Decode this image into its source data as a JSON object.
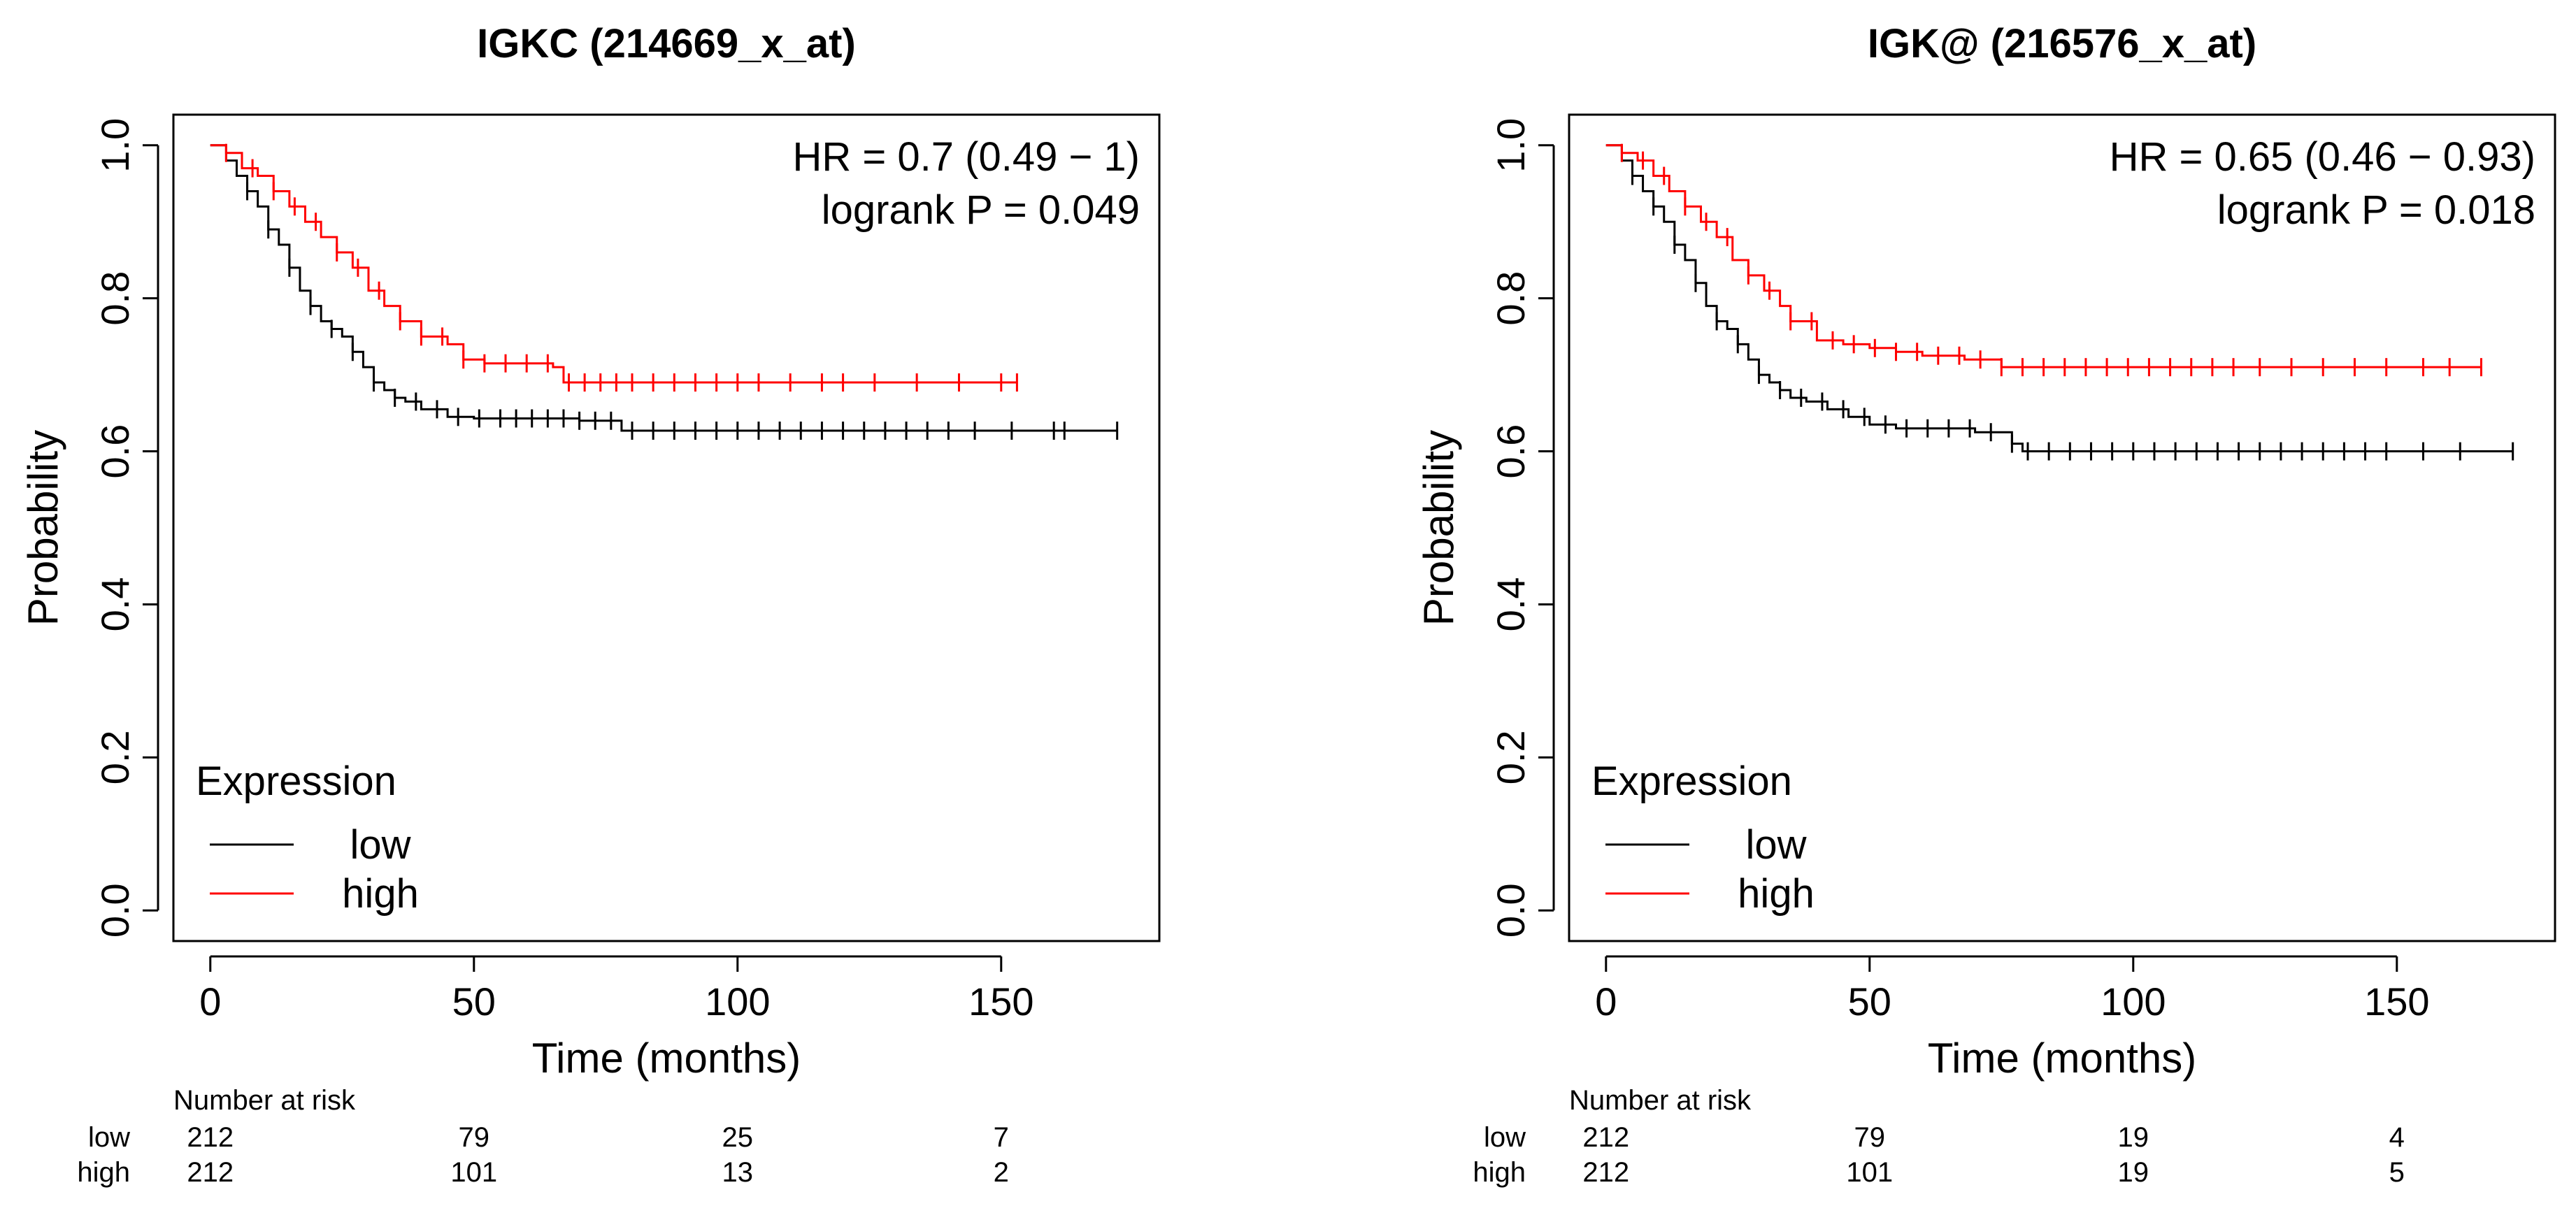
{
  "colors": {
    "low": "#000000",
    "high": "#ff0000",
    "frame": "#000000"
  },
  "chart_data": [
    {
      "type": "line",
      "title": "IGKC (214669_x_at)",
      "xlabel": "Time (months)",
      "ylabel": "Probability",
      "xlim": [
        -7,
        180
      ],
      "ylim": [
        -0.04,
        1.04
      ],
      "xticks": [
        0,
        50,
        100,
        150
      ],
      "xtick_labels": [
        "0",
        "50",
        "100",
        "150"
      ],
      "yticks": [
        0.0,
        0.2,
        0.4,
        0.6,
        0.8,
        1.0
      ],
      "ytick_labels": [
        "0.0",
        "0.2",
        "0.4",
        "0.6",
        "0.8",
        "1.0"
      ],
      "annotations": [
        "HR = 0.7 (0.49 − 1)",
        "logrank P = 0.049"
      ],
      "legend": {
        "title": "Expression",
        "entries": [
          "low",
          "high"
        ],
        "position": "bottom-left"
      },
      "series": [
        {
          "name": "low",
          "x": [
            0,
            3,
            5,
            7,
            9,
            11,
            13,
            15,
            17,
            19,
            21,
            23,
            25,
            27,
            29,
            31,
            33,
            35,
            37,
            40,
            45,
            50,
            60,
            70,
            78,
            90,
            110,
            130,
            150,
            172
          ],
          "y": [
            1.0,
            0.98,
            0.96,
            0.94,
            0.92,
            0.89,
            0.87,
            0.84,
            0.81,
            0.79,
            0.77,
            0.76,
            0.75,
            0.73,
            0.71,
            0.69,
            0.68,
            0.67,
            0.665,
            0.655,
            0.645,
            0.643,
            0.643,
            0.64,
            0.627,
            0.627,
            0.627,
            0.627,
            0.627,
            0.627
          ],
          "censor_x": [
            7,
            11,
            15,
            19,
            23,
            27,
            31,
            35,
            39,
            43,
            47,
            51,
            55,
            58,
            61,
            64,
            67,
            70,
            73,
            76,
            80,
            84,
            88,
            92,
            96,
            100,
            104,
            108,
            112,
            116,
            120,
            124,
            128,
            132,
            136,
            140,
            145,
            152,
            160,
            162,
            172
          ]
        },
        {
          "name": "high",
          "x": [
            0,
            3,
            6,
            9,
            12,
            15,
            18,
            21,
            24,
            27,
            30,
            33,
            36,
            40,
            45,
            48,
            52,
            58,
            65,
            67,
            75,
            100,
            130,
            153
          ],
          "y": [
            1.0,
            0.99,
            0.97,
            0.96,
            0.94,
            0.92,
            0.9,
            0.88,
            0.86,
            0.84,
            0.81,
            0.79,
            0.77,
            0.75,
            0.74,
            0.72,
            0.715,
            0.715,
            0.71,
            0.69,
            0.69,
            0.69,
            0.69,
            0.69
          ],
          "censor_x": [
            3,
            8,
            12,
            16,
            20,
            24,
            28,
            32,
            36,
            40,
            44,
            48,
            52,
            56,
            60,
            64,
            68,
            71,
            74,
            77,
            80,
            84,
            88,
            92,
            96,
            100,
            104,
            110,
            116,
            120,
            126,
            134,
            142,
            150,
            153
          ]
        }
      ],
      "risk_table": {
        "header": "Number at risk",
        "rows": [
          {
            "label": "low",
            "values": [
              "212",
              "79",
              "25",
              "7"
            ]
          },
          {
            "label": "high",
            "values": [
              "212",
              "101",
              "13",
              "2"
            ]
          }
        ]
      }
    },
    {
      "type": "line",
      "title": "IGK@ (216576_x_at)",
      "xlabel": "Time (months)",
      "ylabel": "Probability",
      "xlim": [
        -7,
        180
      ],
      "ylim": [
        -0.04,
        1.04
      ],
      "xticks": [
        0,
        50,
        100,
        150
      ],
      "xtick_labels": [
        "0",
        "50",
        "100",
        "150"
      ],
      "yticks": [
        0.0,
        0.2,
        0.4,
        0.6,
        0.8,
        1.0
      ],
      "ytick_labels": [
        "0.0",
        "0.2",
        "0.4",
        "0.6",
        "0.8",
        "1.0"
      ],
      "annotations": [
        "HR = 0.65 (0.46 − 0.93)",
        "logrank P = 0.018"
      ],
      "legend": {
        "title": "Expression",
        "entries": [
          "low",
          "high"
        ],
        "position": "bottom-left"
      },
      "series": [
        {
          "name": "low",
          "x": [
            0,
            3,
            5,
            7,
            9,
            11,
            13,
            15,
            17,
            19,
            21,
            23,
            25,
            27,
            29,
            31,
            33,
            35,
            38,
            42,
            46,
            50,
            55,
            60,
            70,
            77,
            79,
            100,
            130,
            172
          ],
          "y": [
            1.0,
            0.98,
            0.96,
            0.94,
            0.92,
            0.9,
            0.87,
            0.85,
            0.82,
            0.79,
            0.77,
            0.76,
            0.74,
            0.72,
            0.7,
            0.69,
            0.68,
            0.67,
            0.665,
            0.655,
            0.645,
            0.635,
            0.63,
            0.63,
            0.625,
            0.61,
            0.6,
            0.6,
            0.6,
            0.6
          ],
          "censor_x": [
            5,
            9,
            13,
            17,
            21,
            25,
            29,
            33,
            37,
            41,
            45,
            49,
            53,
            57,
            61,
            65,
            69,
            73,
            77,
            80,
            84,
            88,
            92,
            96,
            100,
            104,
            108,
            112,
            116,
            120,
            124,
            128,
            132,
            136,
            140,
            144,
            148,
            155,
            162,
            172
          ]
        },
        {
          "name": "high",
          "x": [
            0,
            3,
            6,
            9,
            12,
            15,
            18,
            21,
            24,
            27,
            30,
            33,
            35,
            40,
            45,
            50,
            55,
            60,
            68,
            75,
            100,
            130,
            166
          ],
          "y": [
            1.0,
            0.99,
            0.98,
            0.96,
            0.94,
            0.92,
            0.9,
            0.88,
            0.85,
            0.83,
            0.81,
            0.79,
            0.77,
            0.745,
            0.74,
            0.735,
            0.73,
            0.725,
            0.72,
            0.71,
            0.71,
            0.71,
            0.71
          ],
          "censor_x": [
            3,
            7,
            11,
            15,
            19,
            23,
            27,
            31,
            35,
            39,
            43,
            47,
            51,
            55,
            59,
            63,
            67,
            71,
            75,
            79,
            83,
            87,
            91,
            95,
            99,
            103,
            107,
            111,
            115,
            119,
            124,
            130,
            136,
            142,
            148,
            155,
            160,
            166
          ]
        }
      ],
      "risk_table": {
        "header": "Number at risk",
        "rows": [
          {
            "label": "low",
            "values": [
              "212",
              "79",
              "19",
              "4"
            ]
          },
          {
            "label": "high",
            "values": [
              "212",
              "101",
              "19",
              "5"
            ]
          }
        ]
      }
    }
  ]
}
